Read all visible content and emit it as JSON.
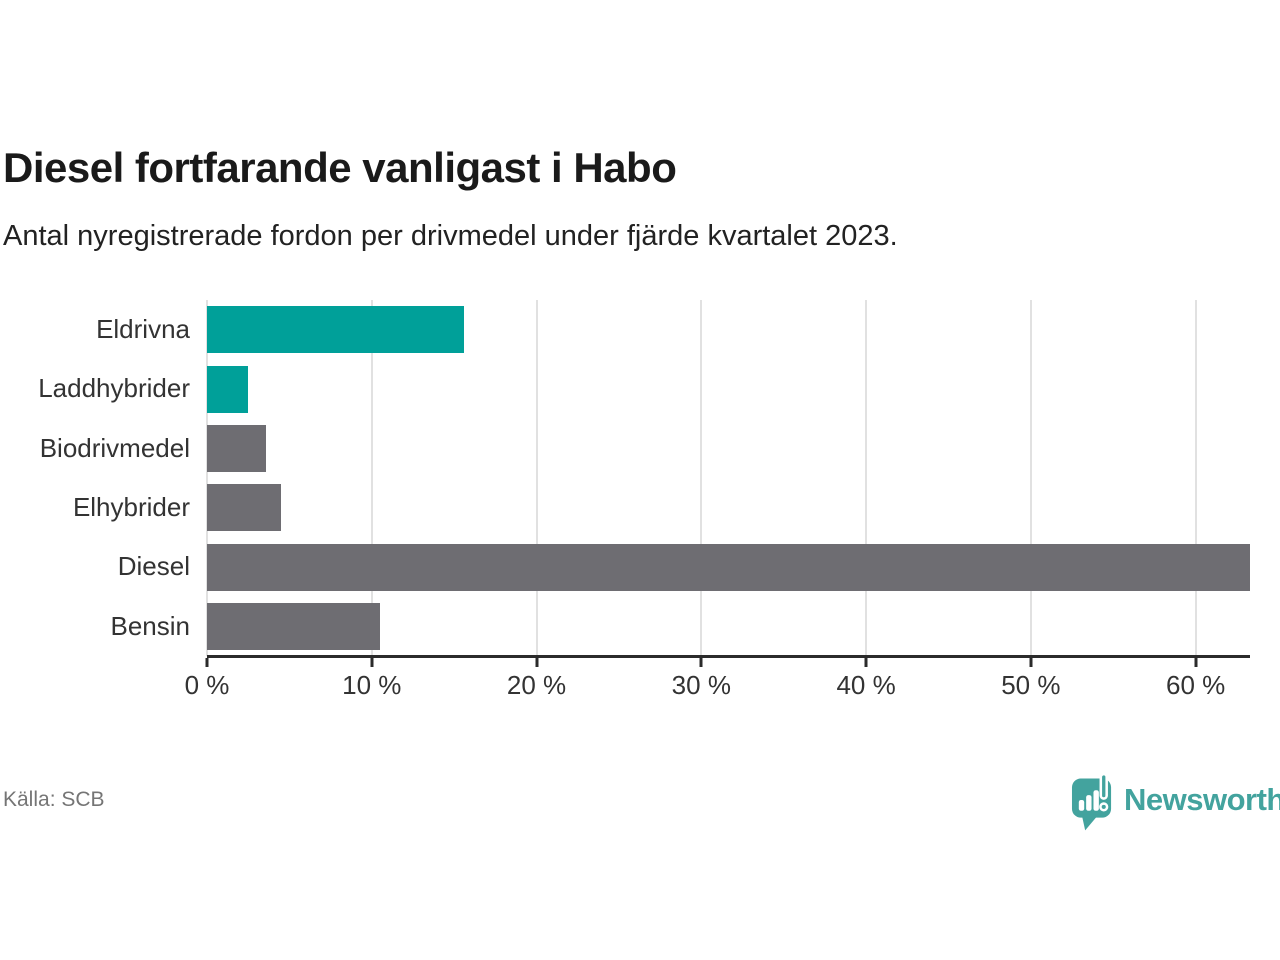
{
  "header": {
    "title": "Diesel fortfarande vanligast i Habo",
    "subtitle": "Antal nyregistrerade fordon per drivmedel under fjärde kvartalet 2023."
  },
  "chart_data": {
    "type": "bar",
    "orientation": "horizontal",
    "title": "Diesel fortfarande vanligast i Habo",
    "subtitle": "Antal nyregistrerade fordon per drivmedel under fjärde kvartalet 2023.",
    "categories": [
      "Eldrivna",
      "Laddhybrider",
      "Biodrivmedel",
      "Elhybrider",
      "Diesel",
      "Bensin"
    ],
    "values": [
      15.6,
      2.5,
      3.6,
      4.5,
      63.3,
      10.5
    ],
    "unit": "%",
    "xlabel": "",
    "ylabel": "",
    "xlim": [
      0,
      63.3
    ],
    "xticks": [
      0,
      10,
      20,
      30,
      40,
      50,
      60
    ],
    "xtick_labels": [
      "0 %",
      "10 %",
      "20 %",
      "30 %",
      "40 %",
      "50 %",
      "60 %"
    ],
    "bar_colors": [
      "#00a099",
      "#00a099",
      "#6e6d72",
      "#6e6d72",
      "#6e6d72",
      "#6e6d72"
    ],
    "grid": "vertical gridlines only",
    "legend": "none"
  },
  "colors": {
    "teal": "#00a099",
    "gray": "#6e6d72",
    "gridline": "#e1e1e1",
    "axis": "#2b2b2b",
    "title_text": "#1a1a1a",
    "label_text": "#333333",
    "muted_text": "#757575",
    "brand_teal": "#43a39e"
  },
  "footer": {
    "source": "Källa: SCB",
    "brand_name": "Newsworthy"
  }
}
